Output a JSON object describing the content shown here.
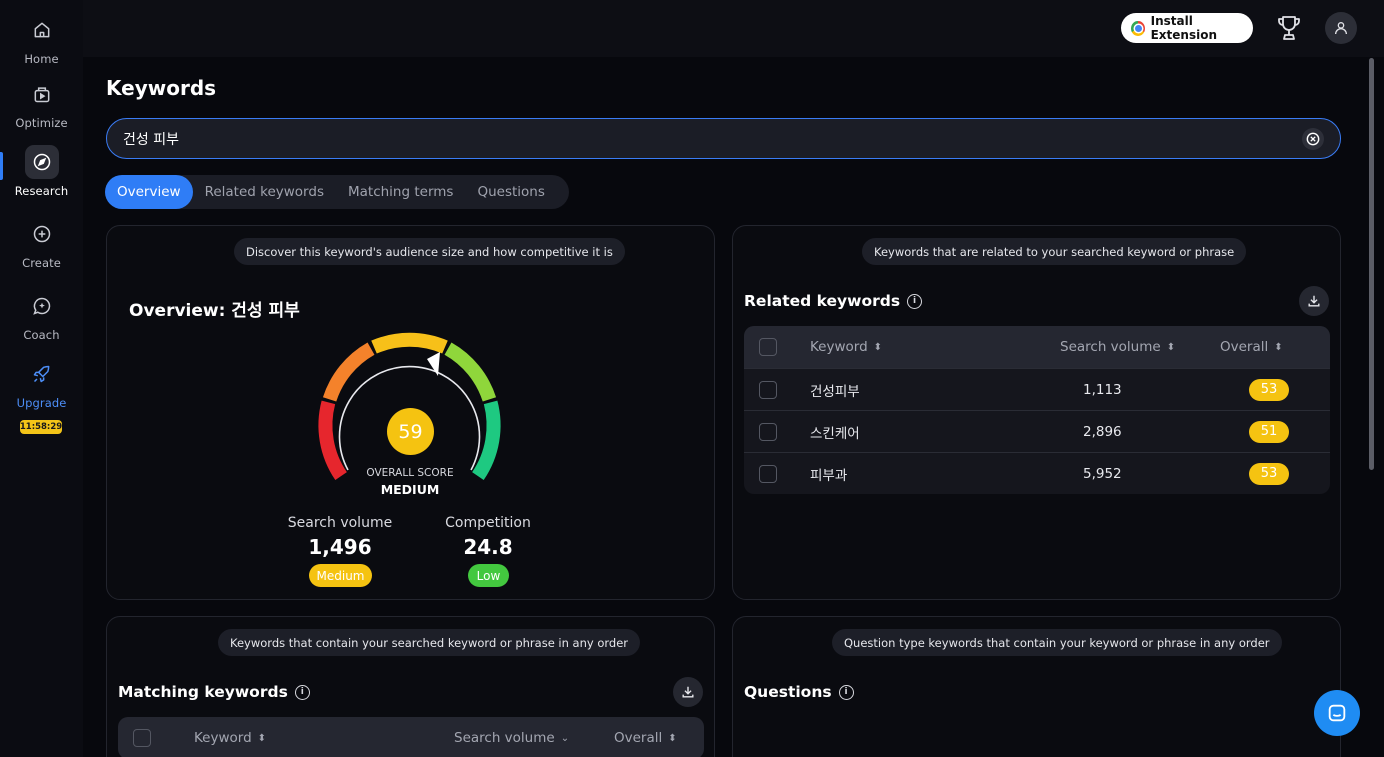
{
  "sidebar": {
    "items": [
      {
        "label": "Home",
        "icon": "home-icon"
      },
      {
        "label": "Optimize",
        "icon": "optimize-icon"
      },
      {
        "label": "Research",
        "icon": "compass-icon"
      },
      {
        "label": "Create",
        "icon": "plus-circle-icon"
      },
      {
        "label": "Coach",
        "icon": "chat-sparkle-icon"
      },
      {
        "label": "Upgrade",
        "icon": "rocket-icon"
      }
    ],
    "timer": "11:58:29"
  },
  "topbar": {
    "install_label": "Install Extension"
  },
  "page": {
    "title": "Keywords"
  },
  "search": {
    "value": "건성 피부"
  },
  "tabs": [
    "Overview",
    "Related keywords",
    "Matching terms",
    "Questions"
  ],
  "overview": {
    "hint": "Discover this keyword's audience size and how competitive it is",
    "title": "Overview: 건성 피부",
    "score": "59",
    "score_fraction": 0.59,
    "score_label": "OVERALL SCORE",
    "score_level": "MEDIUM",
    "search_volume_label": "Search volume",
    "search_volume": "1,496",
    "search_volume_level": "Medium",
    "competition_label": "Competition",
    "competition": "24.8",
    "competition_level": "Low"
  },
  "related": {
    "hint": "Keywords that are related to your searched keyword or phrase",
    "title": "Related keywords",
    "columns": [
      "Keyword",
      "Search volume",
      "Overall"
    ],
    "rows": [
      {
        "keyword": "건성피부",
        "volume": "1,113",
        "overall": "53"
      },
      {
        "keyword": "스킨케어",
        "volume": "2,896",
        "overall": "51"
      },
      {
        "keyword": "피부과",
        "volume": "5,952",
        "overall": "53"
      }
    ]
  },
  "matching": {
    "hint": "Keywords that contain your searched keyword or phrase in any order",
    "title": "Matching keywords",
    "columns": [
      "Keyword",
      "Search volume",
      "Overall"
    ]
  },
  "questions": {
    "hint": "Question type keywords that contain your keyword or phrase in any order",
    "title": "Questions"
  },
  "colors": {
    "accent": "#2f7df6",
    "score_yellow": "#f5c311",
    "low_green": "#43c83f"
  }
}
